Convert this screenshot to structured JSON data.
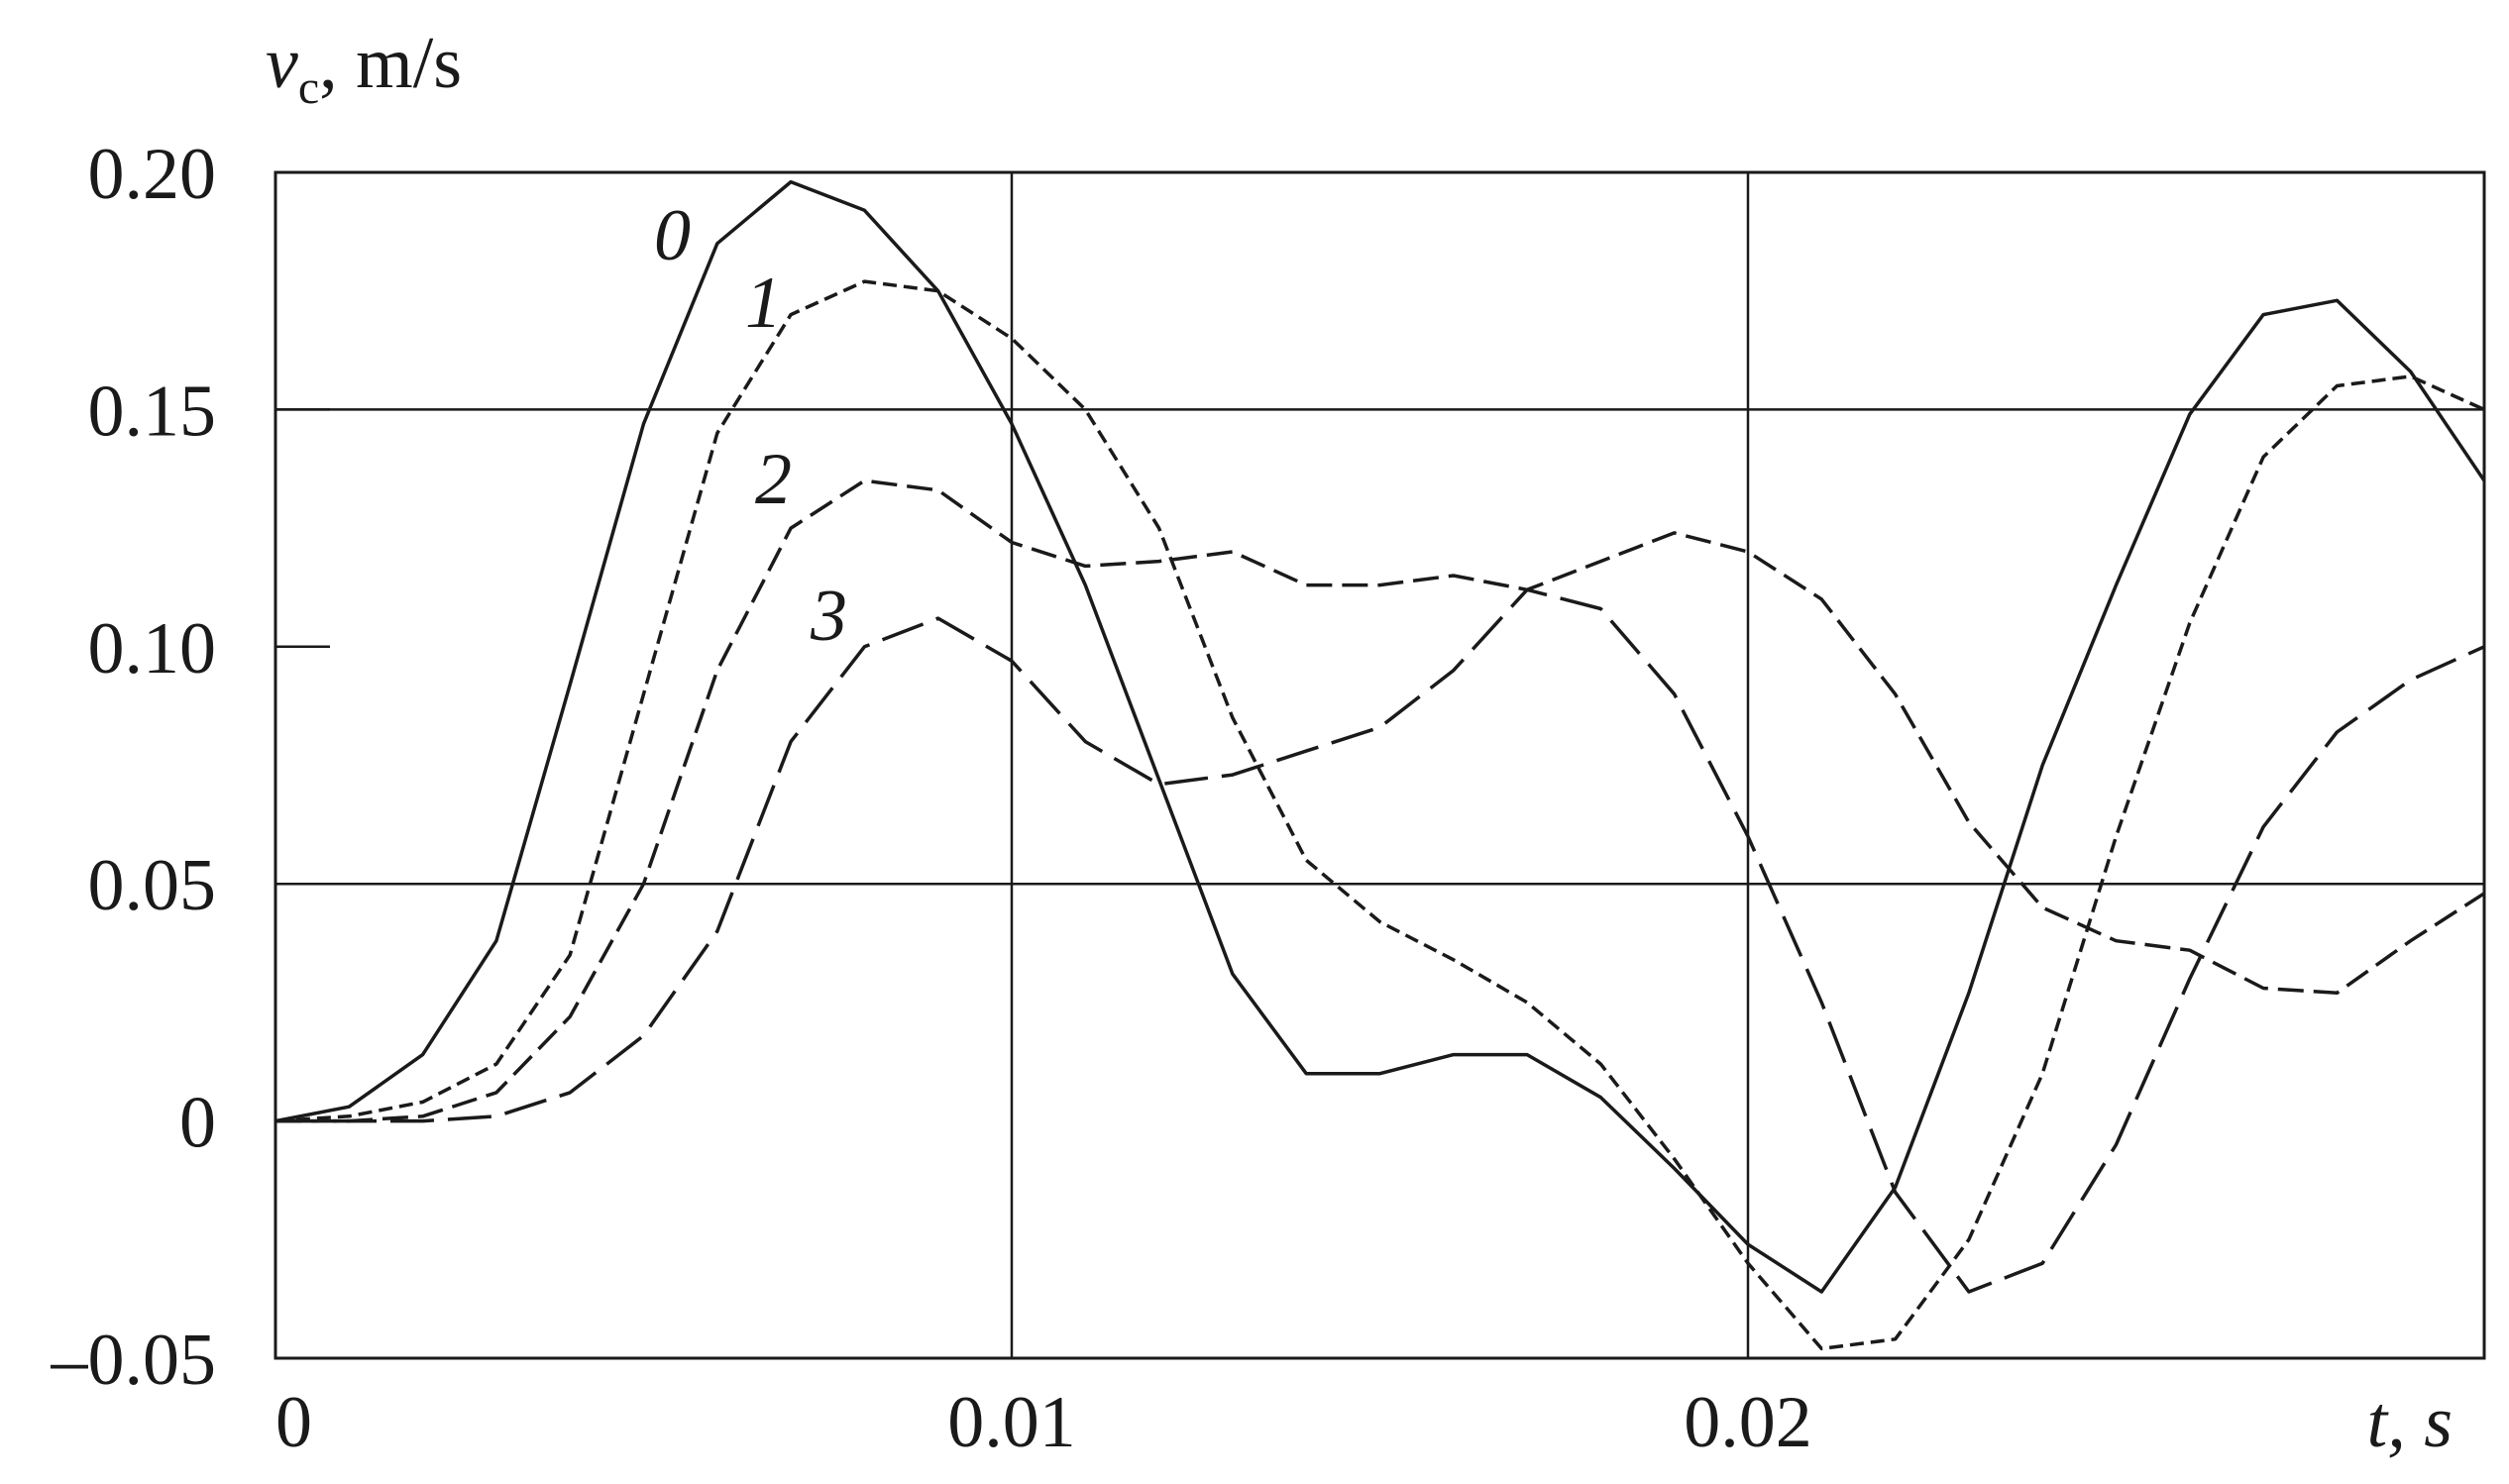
{
  "chart_data": {
    "type": "line",
    "y_label": {
      "symbol": "v",
      "subscript": "c",
      "unit": ", m/s"
    },
    "x_label": "t, s",
    "xlim": [
      0,
      0.03
    ],
    "ylim": [
      -0.05,
      0.2
    ],
    "xticks": [
      0,
      0.01,
      0.02
    ],
    "yticks": [
      {
        "value": 0.2,
        "label": "0.20"
      },
      0.15,
      {
        "value": 0.1,
        "label": "0.10"
      },
      0.05,
      0,
      {
        "value": -0.05,
        "label": "–0.05"
      }
    ],
    "grid_x": [
      0.01,
      0.02
    ],
    "grid_y": [
      0.15,
      0.05
    ],
    "x": [
      0,
      0.001,
      0.002,
      0.003,
      0.004,
      0.005,
      0.006,
      0.007,
      0.008,
      0.009,
      0.01,
      0.011,
      0.012,
      0.013,
      0.014,
      0.015,
      0.016,
      0.017,
      0.018,
      0.019,
      0.02,
      0.021,
      0.022,
      0.023,
      0.024,
      0.025,
      0.026,
      0.027,
      0.028,
      0.029,
      0.03
    ],
    "series": [
      {
        "name": "0",
        "color": "#1a1a1a",
        "dash": "solid",
        "values": [
          0,
          0.003,
          0.014,
          0.038,
          0.092,
          0.147,
          0.185,
          0.198,
          0.192,
          0.175,
          0.147,
          0.113,
          0.072,
          0.031,
          0.01,
          0.01,
          0.014,
          0.014,
          0.005,
          -0.01,
          -0.026,
          -0.036,
          -0.014,
          0.027,
          0.075,
          0.113,
          0.149,
          0.17,
          0.173,
          0.158,
          0.135
        ]
      },
      {
        "name": "1",
        "color": "#1a1a1a",
        "dash": "short",
        "values": [
          0,
          0.001,
          0.004,
          0.012,
          0.035,
          0.09,
          0.145,
          0.17,
          0.177,
          0.175,
          0.165,
          0.15,
          0.125,
          0.085,
          0.055,
          0.042,
          0.034,
          0.025,
          0.012,
          -0.008,
          -0.03,
          -0.048,
          -0.046,
          -0.025,
          0.01,
          0.06,
          0.105,
          0.14,
          0.155,
          0.157,
          0.15
        ]
      },
      {
        "name": "2",
        "color": "#1a1a1a",
        "dash": "medium",
        "values": [
          0,
          0,
          0.001,
          0.006,
          0.022,
          0.05,
          0.095,
          0.125,
          0.135,
          0.133,
          0.122,
          0.117,
          0.118,
          0.12,
          0.113,
          0.113,
          0.115,
          0.112,
          0.118,
          0.124,
          0.12,
          0.11,
          0.09,
          0.063,
          0.045,
          0.038,
          0.036,
          0.028,
          0.027,
          0.038,
          0.048
        ]
      },
      {
        "name": "3",
        "color": "#1a1a1a",
        "dash": "long",
        "values": [
          0,
          0,
          0,
          0.001,
          0.006,
          0.018,
          0.04,
          0.08,
          0.1,
          0.106,
          0.097,
          0.08,
          0.071,
          0.073,
          0.078,
          0.083,
          0.095,
          0.112,
          0.108,
          0.09,
          0.06,
          0.025,
          -0.015,
          -0.036,
          -0.03,
          -0.005,
          0.03,
          0.062,
          0.082,
          0.093,
          0.1
        ]
      }
    ]
  }
}
